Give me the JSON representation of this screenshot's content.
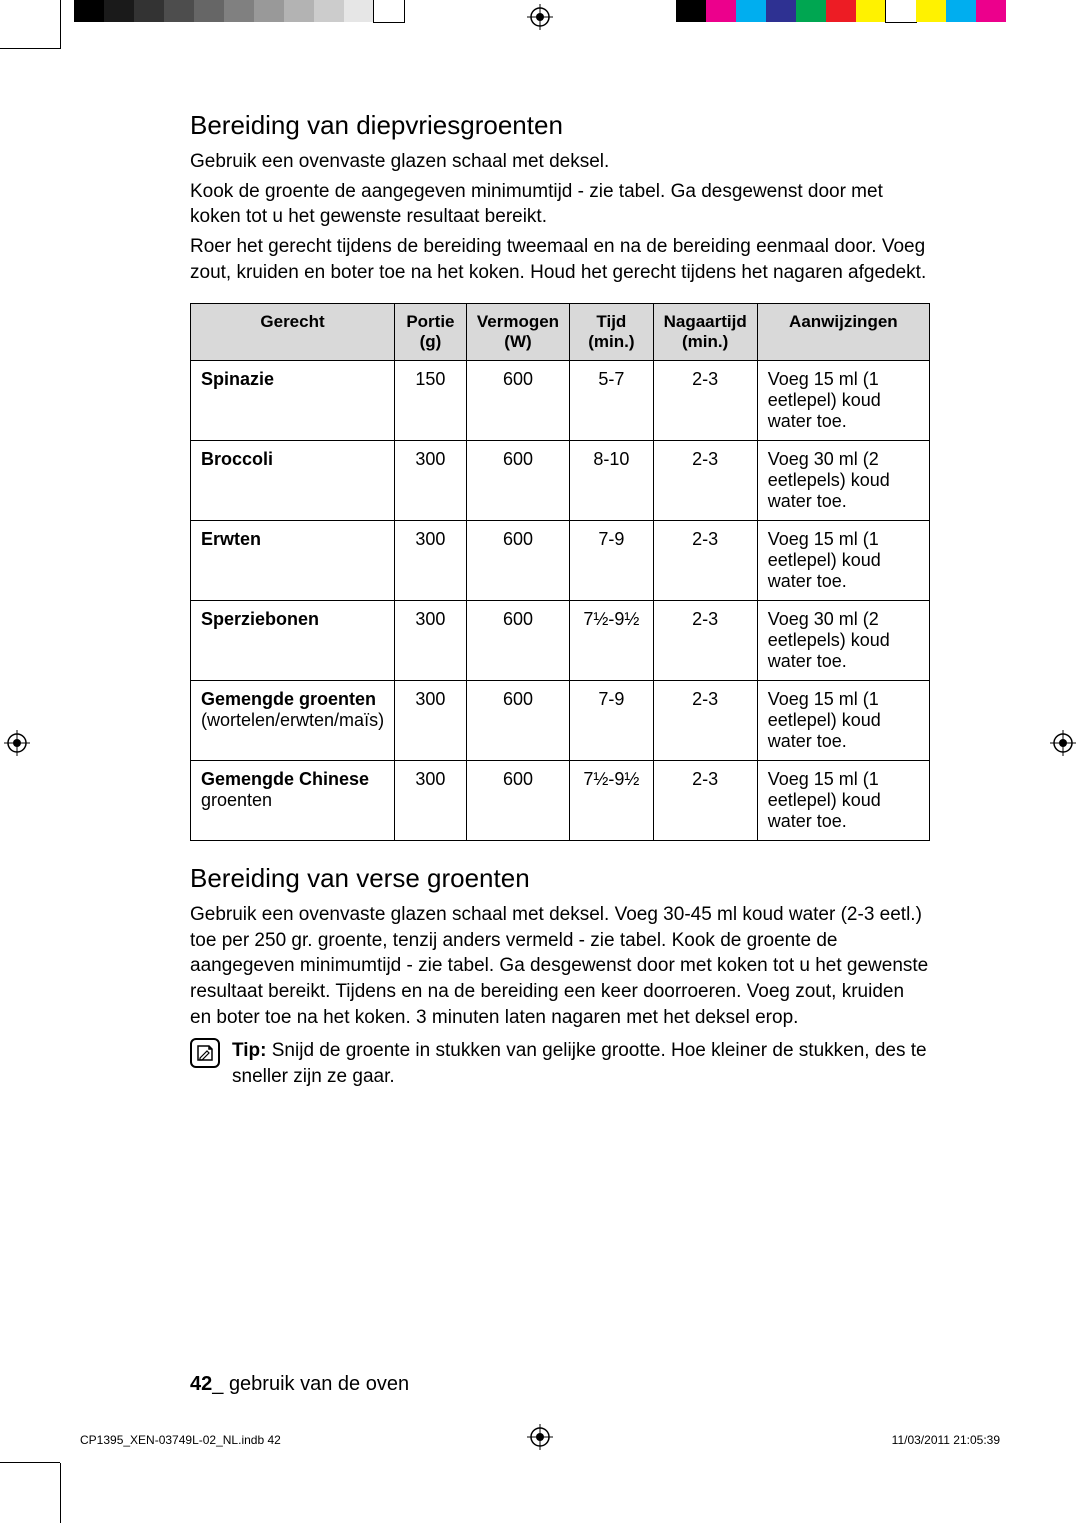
{
  "printer_marks": {
    "left_swatches": [
      "#000000",
      "#1a1a1a",
      "#333333",
      "#4d4d4d",
      "#666666",
      "#808080",
      "#999999",
      "#b3b3b3",
      "#cccccc",
      "#e6e6e6",
      "#ffffff"
    ],
    "right_swatches": [
      "#000000",
      "#ec008c",
      "#00aeef",
      "#2e3192",
      "#00a651",
      "#ed1c24",
      "#fff200",
      "#ffffff",
      "#fff200",
      "#00aeef",
      "#ec008c"
    ]
  },
  "section1": {
    "title": "Bereiding van diepvriesgroenten",
    "p1": "Gebruik een ovenvaste glazen schaal met deksel.",
    "p2": "Kook de groente de aangegeven minimumtijd - zie tabel. Ga desgewenst door met koken tot u het gewenste resultaat bereikt.",
    "p3": "Roer het gerecht tijdens de bereiding tweemaal en na de bereiding eenmaal door. Voeg zout, kruiden en boter toe na het koken. Houd het gerecht tijdens het nagaren afgedekt."
  },
  "table1": {
    "columns": [
      "Gerecht",
      "Portie (g)",
      "Vermogen (W)",
      "Tijd (min.)",
      "Nagaartijd (min.)",
      "Aanwijzingen"
    ],
    "col_widths": [
      "22%",
      "10%",
      "14%",
      "12%",
      "14%",
      "28%"
    ],
    "rows": [
      {
        "gerecht_b": "Spinazie",
        "gerecht_r": "",
        "portie": "150",
        "vermogen": "600",
        "tijd": "5-7",
        "nagaar": "2-3",
        "aanw": "Voeg 15 ml (1 eetlepel) koud water toe."
      },
      {
        "gerecht_b": "Broccoli",
        "gerecht_r": "",
        "portie": "300",
        "vermogen": "600",
        "tijd": "8-10",
        "nagaar": "2-3",
        "aanw": "Voeg 30 ml (2 eetlepels) koud water toe."
      },
      {
        "gerecht_b": "Erwten",
        "gerecht_r": "",
        "portie": "300",
        "vermogen": "600",
        "tijd": "7-9",
        "nagaar": "2-3",
        "aanw": "Voeg 15 ml (1 eetlepel) koud water toe."
      },
      {
        "gerecht_b": "Sperziebonen",
        "gerecht_r": "",
        "portie": "300",
        "vermogen": "600",
        "tijd": "7½-9½",
        "nagaar": "2-3",
        "aanw": "Voeg 30 ml (2 eetlepels) koud water toe."
      },
      {
        "gerecht_b": "Gemengde groenten",
        "gerecht_r": " (wortelen/erwten/maïs)",
        "portie": "300",
        "vermogen": "600",
        "tijd": "7-9",
        "nagaar": "2-3",
        "aanw": "Voeg 15 ml (1 eetlepel) koud water toe."
      },
      {
        "gerecht_b": "Gemengde Chinese",
        "gerecht_r": " groenten",
        "portie": "300",
        "vermogen": "600",
        "tijd": "7½-9½",
        "nagaar": "2-3",
        "aanw": "Voeg 15 ml (1 eetlepel) koud water toe."
      }
    ]
  },
  "section2": {
    "title": "Bereiding van verse groenten",
    "p1": "Gebruik een ovenvaste glazen schaal met deksel. Voeg 30-45 ml koud water (2-3 eetl.) toe per 250 gr. groente, tenzij anders vermeld - zie tabel. Kook de groente de aangegeven minimumtijd - zie tabel. Ga desgewenst door met koken tot u het gewenste resultaat bereikt. Tijdens en na de bereiding een keer doorroeren. Voeg zout, kruiden en boter toe na het koken. 3 minuten laten nagaren met het deksel erop."
  },
  "tip": {
    "label": "Tip:",
    "text": " Snijd de groente in stukken van gelijke grootte. Hoe kleiner de stukken, des te sneller zijn ze gaar."
  },
  "footer": {
    "page_num": "42",
    "sep": "_ ",
    "section": "gebruik van de oven"
  },
  "slug": {
    "file": "CP1395_XEN-03749L-02_NL.indb   42",
    "date": "11/03/2011   21:05:39"
  }
}
